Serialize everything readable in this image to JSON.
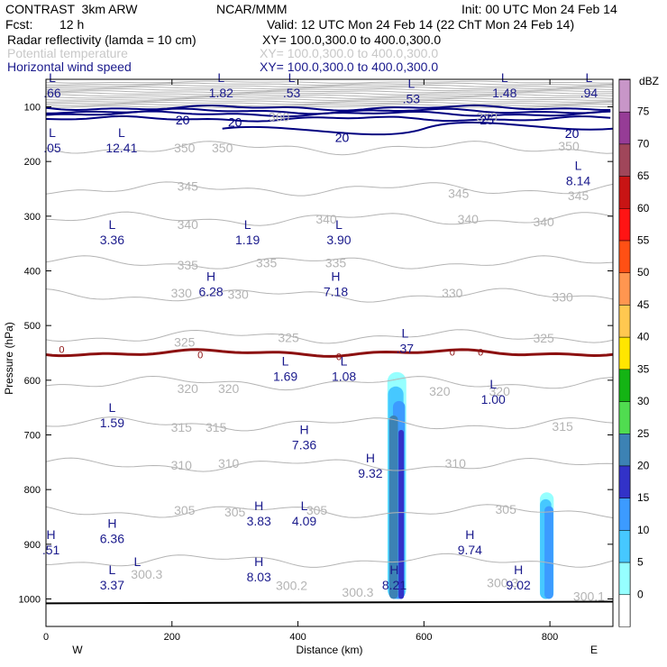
{
  "header": {
    "model": "CONTRAST  3km ARW",
    "org": "NCAR/MMM",
    "init": "Init: 00 UTC Mon 24 Feb 14",
    "fcst_label": "Fcst:",
    "fcst_value": "12 h",
    "valid": "Valid: 12 UTC Mon 24 Feb 14 (22 ChT Mon 24 Feb 14)",
    "fields": [
      {
        "name": "Radar reflectivity (lamda = 10 cm)",
        "xy": "XY= 100.0,300.0 to 400.0,300.0",
        "style": "black"
      },
      {
        "name": "Potential temperature",
        "xy": "XY= 100.0,300.0 to 400.0,300.0",
        "style": "gray"
      },
      {
        "name": "Horizontal wind speed",
        "xy": "XY= 100.0,300.0 to 400.0,300.0",
        "style": "navy"
      }
    ]
  },
  "chart_data": {
    "type": "cross-section",
    "xlabel": "Distance (km)",
    "ylabel": "Pressure (hPa)",
    "xlim": [
      0,
      900
    ],
    "ylim": [
      1030,
      50
    ],
    "xticks": [
      0,
      200,
      400,
      600,
      800
    ],
    "yticks": [
      100,
      200,
      300,
      400,
      500,
      600,
      700,
      800,
      900,
      1000
    ],
    "x_end_labels": {
      "left": "W",
      "right": "E"
    },
    "colorbar": {
      "unit": "dBZ",
      "levels": [
        75,
        70,
        65,
        60,
        55,
        50,
        45,
        40,
        35,
        30,
        25,
        20,
        15,
        10,
        5,
        0
      ],
      "colors": [
        "#c896c8",
        "#963c96",
        "#a0465a",
        "#c81414",
        "#ff1414",
        "#ff5014",
        "#ff9650",
        "#ffc850",
        "#ffe600",
        "#14b414",
        "#50dc50",
        "#3c82b4",
        "#3232c8",
        "#3c9bff",
        "#46c8ff",
        "#96ffff",
        "#ffffff"
      ]
    },
    "theta_contours": [
      {
        "value": 350,
        "p": 175
      },
      {
        "value": 345,
        "p": 250
      },
      {
        "value": 340,
        "p": 305
      },
      {
        "value": 335,
        "p": 385
      },
      {
        "value": 330,
        "p": 445
      },
      {
        "value": 325,
        "p": 520
      },
      {
        "value": 320,
        "p": 605
      },
      {
        "value": 315,
        "p": 680
      },
      {
        "value": 310,
        "p": 755
      },
      {
        "value": 305,
        "p": 840
      },
      {
        "value": 300,
        "p": 930
      }
    ],
    "theta_labels": [
      {
        "text": "350",
        "x": 220,
        "p": 175
      },
      {
        "text": "350",
        "x": 280,
        "p": 175
      },
      {
        "text": "350",
        "x": 830,
        "p": 172
      },
      {
        "text": "345",
        "x": 225,
        "p": 245
      },
      {
        "text": "345",
        "x": 655,
        "p": 258
      },
      {
        "text": "345",
        "x": 845,
        "p": 262
      },
      {
        "text": "340",
        "x": 225,
        "p": 315
      },
      {
        "text": "340",
        "x": 445,
        "p": 305
      },
      {
        "text": "340",
        "x": 670,
        "p": 305
      },
      {
        "text": "340",
        "x": 790,
        "p": 310
      },
      {
        "text": "335",
        "x": 225,
        "p": 389
      },
      {
        "text": "335",
        "x": 350,
        "p": 385
      },
      {
        "text": "335",
        "x": 460,
        "p": 385
      },
      {
        "text": "330",
        "x": 215,
        "p": 440
      },
      {
        "text": "330",
        "x": 305,
        "p": 443
      },
      {
        "text": "330",
        "x": 645,
        "p": 440
      },
      {
        "text": "330",
        "x": 820,
        "p": 448
      },
      {
        "text": "325",
        "x": 220,
        "p": 530
      },
      {
        "text": "325",
        "x": 385,
        "p": 522
      },
      {
        "text": "325",
        "x": 790,
        "p": 523
      },
      {
        "text": "320",
        "x": 225,
        "p": 615
      },
      {
        "text": "320",
        "x": 290,
        "p": 615
      },
      {
        "text": "320",
        "x": 625,
        "p": 620
      },
      {
        "text": "320",
        "x": 720,
        "p": 620
      },
      {
        "text": "315",
        "x": 215,
        "p": 686
      },
      {
        "text": "315",
        "x": 270,
        "p": 686
      },
      {
        "text": "315",
        "x": 820,
        "p": 684
      },
      {
        "text": "310",
        "x": 215,
        "p": 755
      },
      {
        "text": "310",
        "x": 290,
        "p": 752
      },
      {
        "text": "310",
        "x": 650,
        "p": 752
      },
      {
        "text": "305",
        "x": 220,
        "p": 838
      },
      {
        "text": "305",
        "x": 430,
        "p": 838
      },
      {
        "text": "305",
        "x": 730,
        "p": 836
      },
      {
        "text": "300.3",
        "x": 160,
        "p": 955
      },
      {
        "text": "300.2",
        "x": 390,
        "p": 975
      },
      {
        "text": "300.3",
        "x": 495,
        "p": 988
      },
      {
        "text": "300.3",
        "x": 725,
        "p": 970
      },
      {
        "text": "300.1",
        "x": 862,
        "p": 995
      },
      {
        "text": "305",
        "x": 300,
        "p": 841
      },
      {
        "text": "360",
        "x": 700,
        "p": 118
      },
      {
        "text": "360",
        "x": 370,
        "p": 118
      }
    ],
    "wind_labels": [
      {
        "text": "20",
        "x": 217,
        "p": 124
      },
      {
        "text": "20",
        "x": 300,
        "p": 128
      },
      {
        "text": "20",
        "x": 470,
        "p": 156
      },
      {
        "text": "25",
        "x": 700,
        "p": 124
      },
      {
        "text": "20",
        "x": 835,
        "p": 149
      }
    ],
    "zero_line_labels": [
      {
        "text": "0",
        "x": 25,
        "p": 543
      },
      {
        "text": "0",
        "x": 245,
        "p": 553
      },
      {
        "text": "0",
        "x": 465,
        "p": 557
      },
      {
        "text": "0",
        "x": 645,
        "p": 548
      },
      {
        "text": "0",
        "x": 690,
        "p": 548
      }
    ],
    "extrema": [
      {
        "type": "L",
        "value": ".66",
        "x": 10,
        "p": 55
      },
      {
        "type": "L",
        "value": "1.82",
        "x": 278,
        "p": 55
      },
      {
        "type": "L",
        "value": ".53",
        "x": 390,
        "p": 55
      },
      {
        "type": "L",
        "value": ".53",
        "x": 580,
        "p": 65
      },
      {
        "type": "L",
        "value": "1.48",
        "x": 728,
        "p": 55
      },
      {
        "type": "L",
        "value": ".94",
        "x": 862,
        "p": 55
      },
      {
        "type": "L",
        "value": ".05",
        "x": 10,
        "p": 155
      },
      {
        "type": "L",
        "value": "12.41",
        "x": 120,
        "p": 155
      },
      {
        "type": "L",
        "value": "8.14",
        "x": 845,
        "p": 215
      },
      {
        "type": "L",
        "value": "3.36",
        "x": 105,
        "p": 323
      },
      {
        "type": "L",
        "value": "1.19",
        "x": 320,
        "p": 323
      },
      {
        "type": "L",
        "value": "3.90",
        "x": 465,
        "p": 323
      },
      {
        "type": "H",
        "value": "6.28",
        "x": 262,
        "p": 418
      },
      {
        "type": "H",
        "value": "7.18",
        "x": 460,
        "p": 418
      },
      {
        "type": "L",
        "value": ".37",
        "x": 570,
        "p": 522
      },
      {
        "type": "L",
        "value": "1.69",
        "x": 380,
        "p": 573
      },
      {
        "type": "L",
        "value": "1.08",
        "x": 473,
        "p": 573
      },
      {
        "type": "L",
        "value": "1.00",
        "x": 710,
        "p": 615
      },
      {
        "type": "L",
        "value": "1.59",
        "x": 105,
        "p": 658
      },
      {
        "type": "H",
        "value": "7.36",
        "x": 410,
        "p": 698
      },
      {
        "type": "H",
        "value": "9.32",
        "x": 515,
        "p": 750
      },
      {
        "type": "H",
        "value": "3.83",
        "x": 338,
        "p": 838
      },
      {
        "type": "L",
        "value": "4.09",
        "x": 410,
        "p": 838
      },
      {
        "type": "H",
        "value": "6.36",
        "x": 105,
        "p": 870
      },
      {
        "type": "H",
        "value": ".51",
        "x": 8,
        "p": 890
      },
      {
        "type": "H",
        "value": "9.74",
        "x": 673,
        "p": 890
      },
      {
        "type": "H",
        "value": "8.03",
        "x": 338,
        "p": 940
      },
      {
        "type": "L",
        "value": "3.37",
        "x": 105,
        "p": 955
      },
      {
        "type": "H",
        "value": "8.21",
        "x": 553,
        "p": 955
      },
      {
        "type": "H",
        "value": "9.02",
        "x": 750,
        "p": 955
      },
      {
        "type": "L",
        "value": "",
        "x": 145,
        "p": 940
      }
    ],
    "reflectivity_cells": [
      {
        "x_center": 557,
        "x_width": 30,
        "p_top": 585,
        "p_bottom": 1005,
        "max_dbz": 20
      },
      {
        "x_center": 795,
        "x_width": 22,
        "p_top": 805,
        "p_bottom": 1005,
        "max_dbz": 12
      }
    ]
  }
}
